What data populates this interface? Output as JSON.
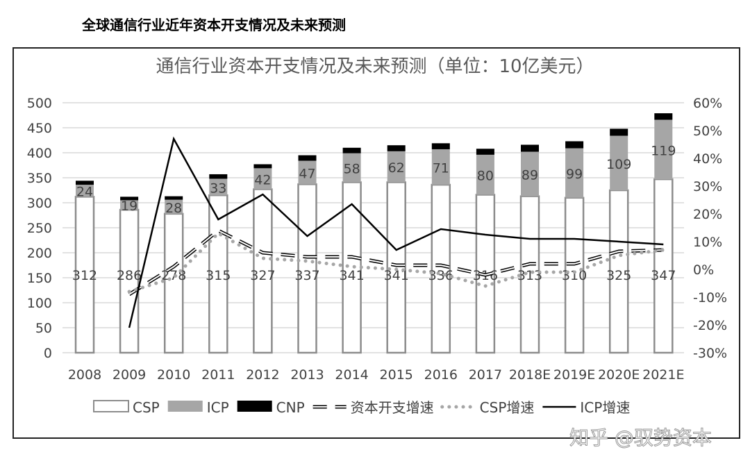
{
  "heading": "全球通信行业近年资本开支情况及未来预测",
  "watermark": "知乎 @驭势资本",
  "chart_data": {
    "type": "bar",
    "stacked": true,
    "title": "通信行业资本开支情况及未来预测（单位：10亿美元）",
    "categories": [
      "2008",
      "2009",
      "2010",
      "2011",
      "2012",
      "2013",
      "2014",
      "2015",
      "2016",
      "2017",
      "2018E",
      "2019E",
      "2020E",
      "2021E"
    ],
    "series": [
      {
        "name": "CSP",
        "kind": "bar",
        "color": "#ffffff",
        "values": [
          312,
          286,
          278,
          315,
          327,
          337,
          341,
          341,
          336,
          316,
          313,
          310,
          325,
          347
        ],
        "labels": true
      },
      {
        "name": "ICP",
        "kind": "bar",
        "color": "#a6a6a6",
        "values": [
          24,
          19,
          28,
          33,
          42,
          47,
          58,
          62,
          71,
          80,
          89,
          99,
          109,
          119
        ],
        "labels": true
      },
      {
        "name": "CNP",
        "kind": "bar",
        "color": "#000000",
        "values": [
          8,
          7,
          7,
          9,
          8,
          11,
          11,
          12,
          12,
          12,
          14,
          14,
          14,
          13
        ]
      },
      {
        "name": "资本开支增速",
        "kind": "line",
        "axis": "right",
        "style": "dashed",
        "values": [
          null,
          -9,
          1,
          14,
          6,
          4.5,
          4.5,
          1.5,
          1.5,
          -2,
          2,
          2,
          6.5,
          7
        ]
      },
      {
        "name": "CSP增速",
        "kind": "line",
        "axis": "right",
        "style": "dotted",
        "values": [
          null,
          -8,
          -3,
          13,
          4,
          3,
          1,
          0,
          -1.5,
          -6,
          -1,
          -1,
          5,
          7
        ]
      },
      {
        "name": "ICP增速",
        "kind": "line",
        "axis": "right",
        "style": "solid",
        "values": [
          null,
          -21,
          47,
          18,
          27,
          12,
          23.5,
          7,
          14.5,
          12.5,
          11,
          11,
          10,
          9
        ]
      }
    ],
    "yleft": {
      "range": [
        0,
        500
      ],
      "ticks": [
        "0",
        "50",
        "100",
        "150",
        "200",
        "250",
        "300",
        "350",
        "400",
        "450",
        "500"
      ]
    },
    "yright": {
      "range": [
        -30,
        60
      ],
      "unit": "%",
      "ticks": [
        "-30%",
        "-20%",
        "-10%",
        "0%",
        "10%",
        "20%",
        "30%",
        "40%",
        "50%",
        "60%"
      ]
    },
    "grid": true,
    "legend": "bottom"
  }
}
